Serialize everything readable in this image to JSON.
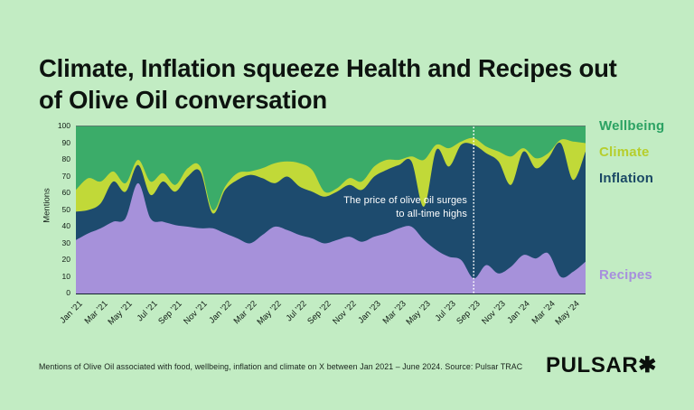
{
  "page": {
    "background": "#c2ecc3",
    "title": "Climate, Inflation squeeze Health and Recipes out of Olive Oil conversation",
    "footer": "Mentions of Olive Oil associated with food, wellbeing, inflation and climate on X between Jan 2021 – June 2024. Source: Pulsar TRAC",
    "logo": "PULSAR✱"
  },
  "chart_data": {
    "type": "area",
    "stacked": true,
    "title": "Climate, Inflation squeeze Health and Recipes out of Olive Oil conversation",
    "xlabel": "",
    "ylabel": "Mentions",
    "ylim": [
      0,
      100
    ],
    "ytick_step": 10,
    "grid": false,
    "legend_position": "right",
    "x": [
      "Jan ’21",
      "Feb ’21",
      "Mar ’21",
      "Apr ’21",
      "May ’21",
      "Jun ’21",
      "Jul ’21",
      "Aug ’21",
      "Sep ’21",
      "Oct ’21",
      "Nov ’21",
      "Dec ’21",
      "Jan ’22",
      "Feb ’22",
      "Mar ’22",
      "Apr ’22",
      "May ’22",
      "Jun ’22",
      "Jul ’22",
      "Aug ’22",
      "Sep ’22",
      "Oct ’22",
      "Nov ’22",
      "Dec ’22",
      "Jan ’23",
      "Feb ’23",
      "Mar ’23",
      "Apr ’23",
      "May ’23",
      "Jun ’23",
      "Jul ’23",
      "Aug ’23",
      "Sep ’23",
      "Oct ’23",
      "Nov ’23",
      "Dec ’23",
      "Jan ’24",
      "Feb ’24",
      "Mar ’24",
      "Apr ’24",
      "May ’24",
      "Jun ’24"
    ],
    "xtick_every": 2,
    "series": [
      {
        "name": "Recipes",
        "color": "#a691da",
        "label_color": "#a78fdd",
        "values": [
          32,
          36,
          39,
          43,
          45,
          66,
          45,
          43,
          41,
          40,
          39,
          39,
          36,
          33,
          30,
          35,
          40,
          38,
          35,
          33,
          30,
          32,
          34,
          31,
          34,
          36,
          39,
          40,
          32,
          26,
          22,
          20,
          9,
          17,
          12,
          16,
          23,
          21,
          24,
          10,
          13,
          19
        ]
      },
      {
        "name": "Inflation",
        "color": "#1d4b6e",
        "label_color": "#1b4965",
        "values": [
          17,
          14,
          15,
          24,
          16,
          11,
          14,
          24,
          20,
          30,
          34,
          9,
          26,
          35,
          41,
          34,
          26,
          32,
          29,
          28,
          28,
          29,
          31,
          31,
          36,
          38,
          38,
          39,
          20,
          60,
          54,
          69,
          80,
          67,
          67,
          49,
          62,
          54,
          57,
          80,
          55,
          66
        ]
      },
      {
        "name": "Climate",
        "color": "#c1d938",
        "label_color": "#b6ce2d",
        "values": [
          13,
          19,
          13,
          6,
          5,
          3,
          8,
          5,
          4,
          5,
          3,
          2,
          2,
          4,
          2,
          6,
          12,
          9,
          14,
          13,
          3,
          2,
          4,
          5,
          6,
          6,
          3,
          3,
          28,
          3,
          11,
          2,
          4,
          4,
          6,
          17,
          2,
          6,
          3,
          2,
          23,
          5
        ]
      },
      {
        "name": "Wellbeing",
        "color": "#3bac69",
        "label_color": "#2ba263",
        "values": [
          38,
          31,
          33,
          27,
          34,
          20,
          33,
          28,
          35,
          25,
          24,
          50,
          36,
          28,
          27,
          25,
          22,
          21,
          22,
          26,
          39,
          37,
          31,
          33,
          24,
          20,
          20,
          18,
          20,
          11,
          13,
          9,
          7,
          12,
          15,
          18,
          13,
          19,
          16,
          8,
          9,
          10
        ]
      }
    ],
    "annotation": {
      "line1": "The price of olive oil surges",
      "line2": "to all-time highs",
      "x_index": 32,
      "marker": "white dotted vertical line"
    }
  }
}
